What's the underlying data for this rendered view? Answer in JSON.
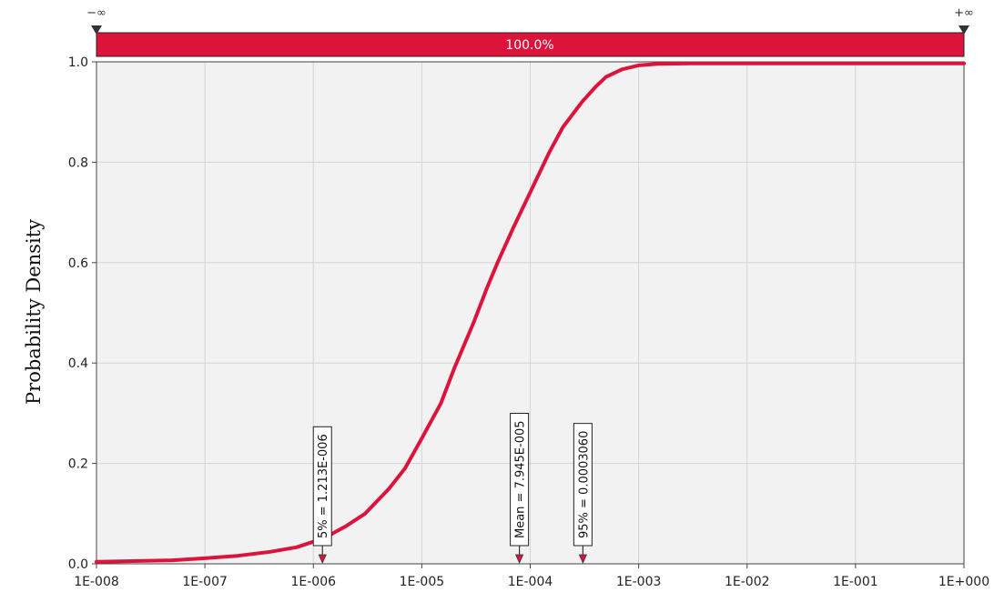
{
  "chart_data": {
    "type": "line",
    "ylabel": "Probability Density",
    "xscale": "log",
    "xlim": [
      1e-08,
      1
    ],
    "ylim": [
      0,
      1
    ],
    "x_tick_labels": [
      "1E-008",
      "1E-007",
      "1E-006",
      "1E-005",
      "1E-004",
      "1E-003",
      "1E-002",
      "1E-001",
      "1E+000"
    ],
    "y_tick_labels": [
      "0.0",
      "0.2",
      "0.4",
      "0.6",
      "0.8",
      "1.0"
    ],
    "grid": true,
    "series_color": "#dc143c",
    "series": [
      {
        "x": [
          1e-08,
          5e-08,
          1e-07,
          2e-07,
          4e-07,
          7e-07,
          1e-06,
          1.3e-06,
          2e-06,
          3e-06,
          5e-06,
          7e-06,
          1e-05,
          1.5e-05,
          2e-05,
          3e-05,
          4e-05,
          5e-05,
          7e-05,
          0.0001,
          0.00015,
          0.0002,
          0.0003,
          0.0004,
          0.0005,
          0.0007,
          0.001,
          0.0015,
          0.003,
          0.01,
          0.1,
          1
        ],
        "y": [
          0.004,
          0.007,
          0.011,
          0.016,
          0.024,
          0.033,
          0.044,
          0.053,
          0.075,
          0.1,
          0.15,
          0.19,
          0.25,
          0.32,
          0.39,
          0.48,
          0.55,
          0.6,
          0.67,
          0.74,
          0.82,
          0.87,
          0.92,
          0.95,
          0.97,
          0.985,
          0.993,
          0.996,
          0.997,
          0.997,
          0.997,
          0.997
        ]
      }
    ],
    "markers": [
      {
        "label": "5% = 1.213E-006",
        "x": 1.213e-06
      },
      {
        "label": "Mean = 7.945E-005",
        "x": 7.945e-05
      },
      {
        "label": "95% = 0.0003060",
        "x": 0.000306
      }
    ],
    "range_bar": {
      "label": "100.0%",
      "left_label": "−∞",
      "right_label": "+∞",
      "color": "#dc143c"
    }
  }
}
